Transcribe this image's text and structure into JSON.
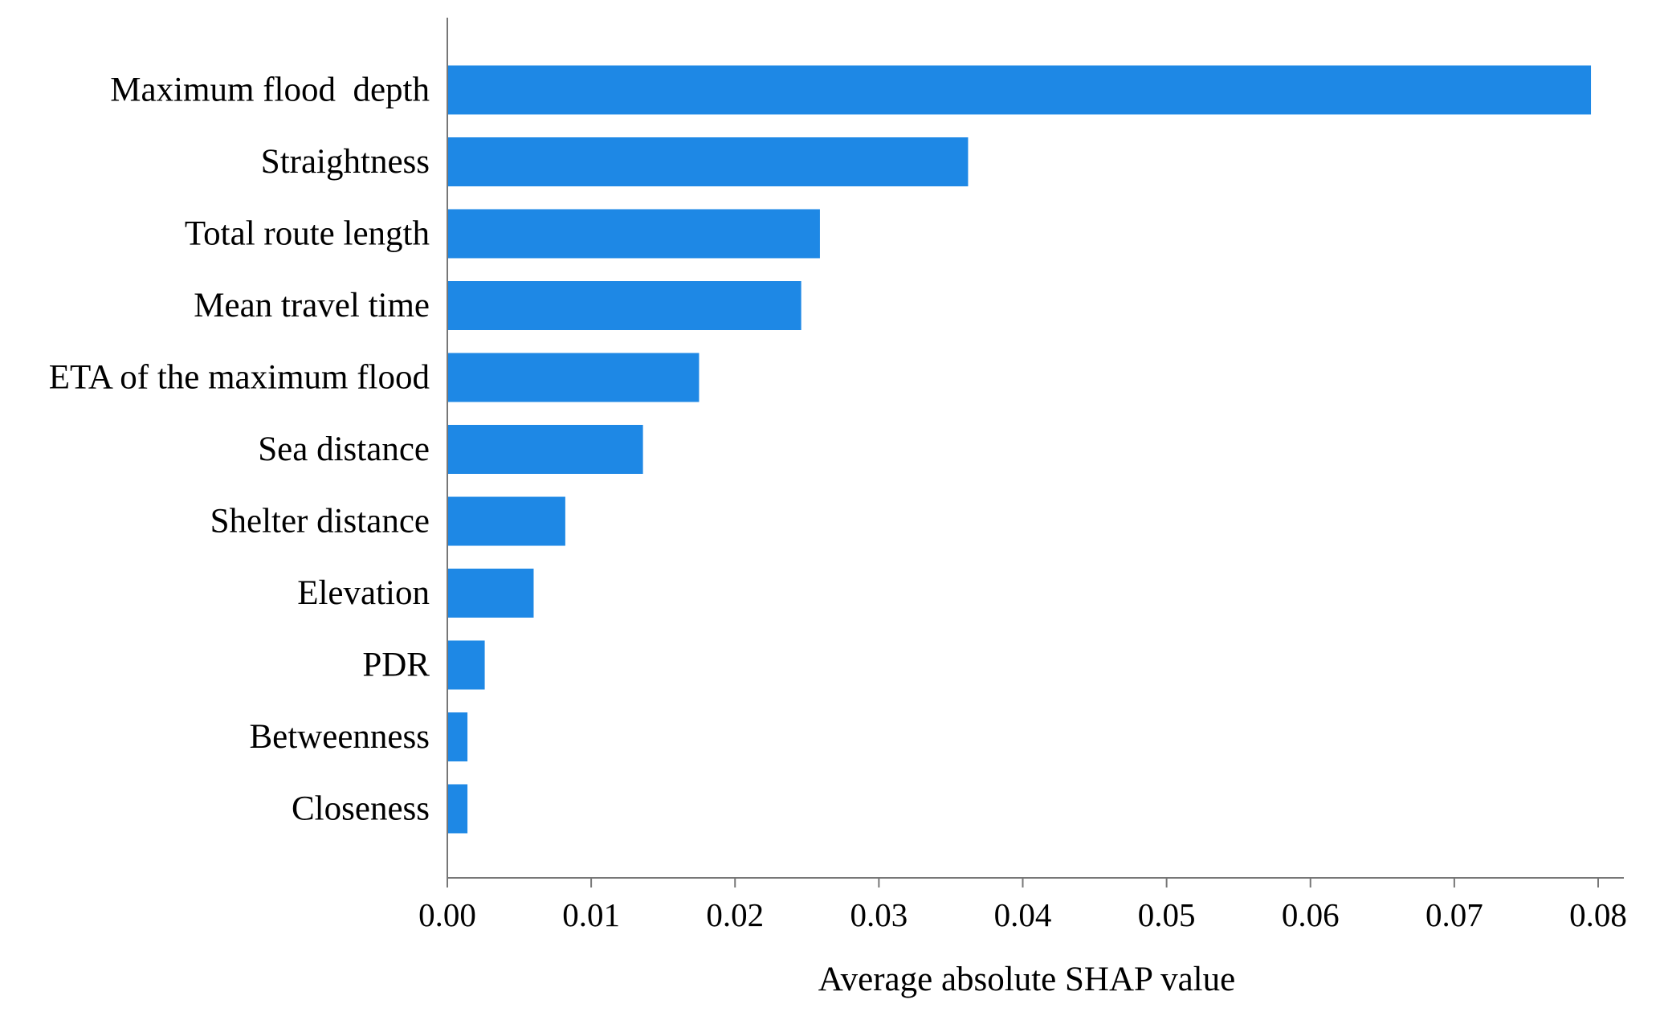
{
  "chart_data": {
    "type": "bar",
    "orientation": "horizontal",
    "categories": [
      "Maximum flood  depth",
      "Straightness",
      "Total route length",
      "Mean travel time",
      "ETA of the maximum flood",
      "Sea distance",
      "Shelter distance",
      "Elevation",
      "PDR",
      "Betweenness",
      "Closeness"
    ],
    "values": [
      0.0795,
      0.0362,
      0.0259,
      0.0246,
      0.0175,
      0.0136,
      0.0082,
      0.006,
      0.0026,
      0.0014,
      0.0014
    ],
    "title": "",
    "xlabel": "Average absolute SHAP value",
    "ylabel": "",
    "xlim": [
      0,
      0.08
    ],
    "xticks": [
      "0.00",
      "0.01",
      "0.02",
      "0.03",
      "0.04",
      "0.05",
      "0.06",
      "0.07",
      "0.08"
    ],
    "xtick_values": [
      0,
      0.01,
      0.02,
      0.03,
      0.04,
      0.05,
      0.06,
      0.07,
      0.08
    ],
    "bar_color": "#1e88e5",
    "axis_color": "#777777",
    "grid": false,
    "legend": "none"
  }
}
